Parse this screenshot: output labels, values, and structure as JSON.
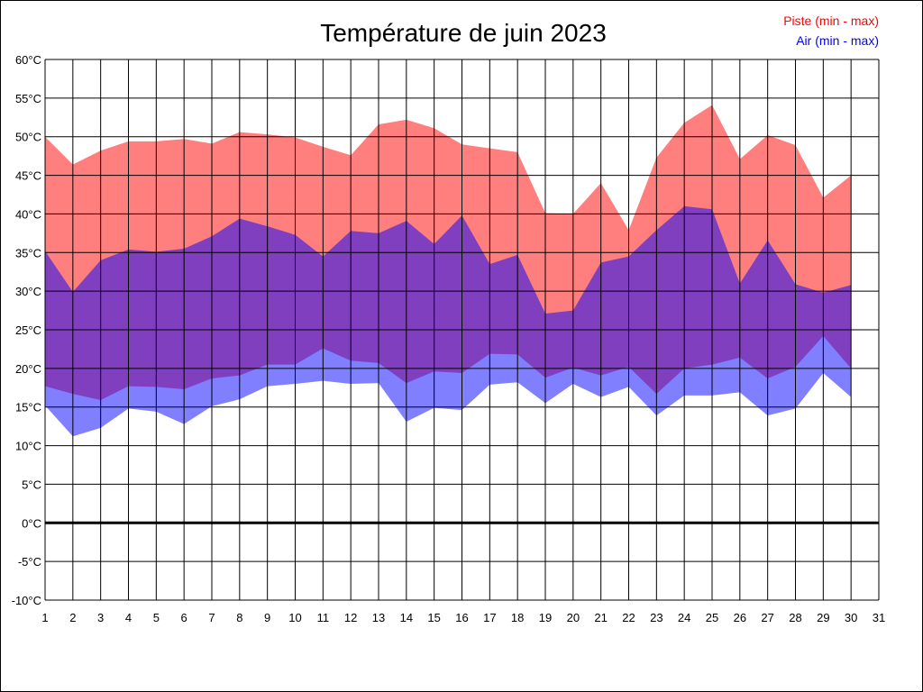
{
  "chart_data": {
    "type": "area",
    "title": "Température de juin 2023",
    "xlabel": "",
    "ylabel": "",
    "x": [
      1,
      2,
      3,
      4,
      5,
      6,
      7,
      8,
      9,
      10,
      11,
      12,
      13,
      14,
      15,
      16,
      17,
      18,
      19,
      20,
      21,
      22,
      23,
      24,
      25,
      26,
      27,
      28,
      29,
      30
    ],
    "xlim": [
      1,
      31
    ],
    "x_ticks": [
      "1",
      "2",
      "3",
      "4",
      "5",
      "6",
      "7",
      "8",
      "9",
      "10",
      "11",
      "12",
      "13",
      "14",
      "15",
      "16",
      "17",
      "18",
      "19",
      "20",
      "21",
      "22",
      "23",
      "24",
      "25",
      "26",
      "27",
      "28",
      "29",
      "30",
      "31"
    ],
    "ylim": [
      -10,
      60
    ],
    "y_ticks": [
      "-10°C",
      "-5°C",
      "0°C",
      "5°C",
      "10°C",
      "15°C",
      "20°C",
      "25°C",
      "30°C",
      "35°C",
      "40°C",
      "45°C",
      "50°C",
      "55°C",
      "60°C"
    ],
    "grid": true,
    "legend_position": "top-right",
    "series": [
      {
        "name": "Piste (min - max)",
        "color": "#ff0000",
        "fill": "#ff8080",
        "min": [
          17.7,
          16.7,
          15.9,
          17.7,
          17.6,
          17.3,
          18.7,
          19.1,
          20.5,
          20.5,
          22.6,
          21.0,
          20.7,
          18.1,
          19.6,
          19.4,
          21.9,
          21.8,
          18.8,
          20.1,
          19.1,
          20.2,
          16.7,
          20.0,
          20.5,
          21.4,
          18.7,
          20.2,
          24.2,
          20.0
        ],
        "max": [
          50.0,
          46.4,
          48.2,
          49.4,
          49.4,
          49.7,
          49.1,
          50.6,
          50.3,
          49.9,
          48.7,
          47.6,
          51.6,
          52.2,
          51.1,
          49.0,
          48.5,
          48.0,
          40.1,
          40.0,
          44.0,
          37.9,
          47.3,
          51.8,
          54.1,
          47.1,
          50.2,
          48.9,
          42.1,
          45.0
        ]
      },
      {
        "name": "Air (min - max)",
        "color": "#0000ff",
        "fill": "#8080ff",
        "min": [
          15.2,
          11.2,
          12.3,
          14.8,
          14.4,
          12.8,
          15.1,
          16.0,
          17.7,
          18.0,
          18.4,
          18.0,
          18.1,
          13.1,
          14.9,
          14.6,
          17.9,
          18.2,
          15.5,
          18.0,
          16.3,
          17.6,
          13.9,
          16.5,
          16.5,
          16.9,
          13.9,
          14.8,
          19.4,
          16.3
        ],
        "max": [
          35.2,
          29.9,
          34.0,
          35.4,
          35.1,
          35.5,
          37.1,
          39.4,
          38.4,
          37.3,
          34.5,
          37.8,
          37.5,
          39.1,
          36.1,
          39.8,
          33.5,
          34.7,
          27.1,
          27.5,
          33.7,
          34.5,
          37.9,
          41.0,
          40.6,
          31.0,
          36.6,
          30.9,
          29.8,
          30.8
        ]
      }
    ]
  }
}
